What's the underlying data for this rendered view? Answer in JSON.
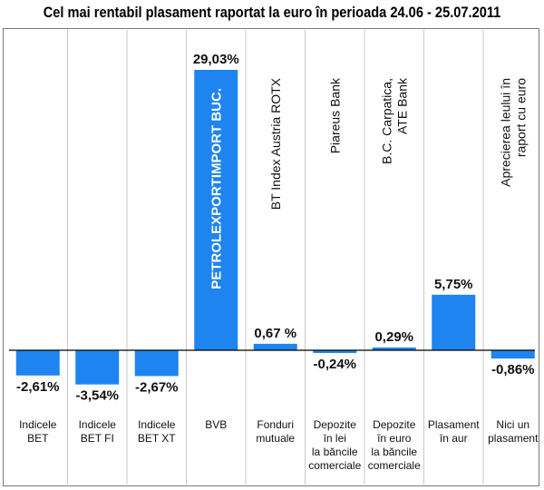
{
  "chart_data": {
    "type": "bar",
    "title": "Cel mai rentabil plasament raportat la euro în perioada 24.06 - 25.07.2011",
    "categories": [
      [
        "Indicele",
        "BET"
      ],
      [
        "Indicele",
        "BET FI"
      ],
      [
        "Indicele",
        "BET XT"
      ],
      [
        "BVB"
      ],
      [
        "Fonduri",
        "mutuale"
      ],
      [
        "Depozite",
        "în lei",
        "la băncile",
        "comerciale"
      ],
      [
        "Depozite",
        "în euro",
        "la băncile",
        "comerciale"
      ],
      [
        "Plasament",
        "în aur"
      ],
      [
        "Nici un",
        "plasament"
      ]
    ],
    "descriptions": [
      [],
      [],
      [],
      [
        "PETROLEXPORTIMPORT BUC."
      ],
      [
        "BT Index Austria ROTX"
      ],
      [
        "Piareus Bank"
      ],
      [
        "B.C. Carpatica,",
        "ATE Bank"
      ],
      [],
      [
        "Aprecierea leului în",
        "raport cu euro"
      ]
    ],
    "values": [
      -2.61,
      -3.54,
      -2.67,
      29.03,
      0.67,
      -0.24,
      0.29,
      5.75,
      -0.86
    ],
    "value_labels": [
      "-2,61%",
      "-3,54%",
      "-2,67%",
      "29,03%",
      "0,67 %",
      "-0,24%",
      "0,29%",
      "5,75%",
      "-0,86%"
    ],
    "unit": "%",
    "bar_color": "#1e84f0",
    "grid": false
  }
}
